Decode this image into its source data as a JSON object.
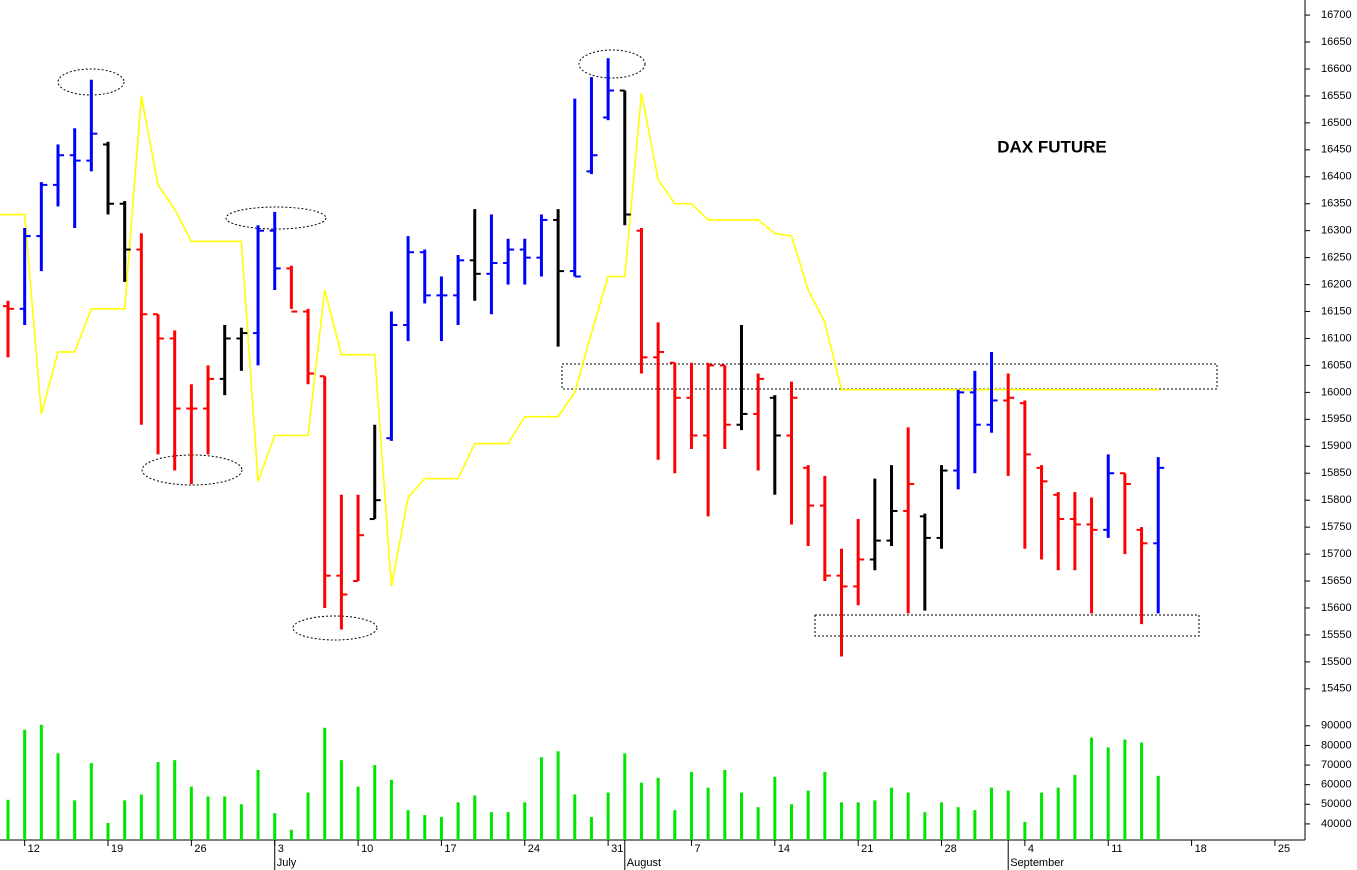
{
  "chart_data": {
    "type": "ohlc",
    "title": "DAX FUTURE",
    "categories": [
      null,
      "12",
      null,
      null,
      null,
      null,
      "19",
      null,
      null,
      null,
      null,
      "26",
      null,
      null,
      null,
      null,
      "3",
      null,
      null,
      null,
      null,
      "10",
      null,
      null,
      null,
      null,
      "17",
      null,
      null,
      null,
      null,
      "24",
      null,
      null,
      null,
      null,
      "31",
      null,
      null,
      null,
      null,
      "7",
      null,
      null,
      null,
      null,
      "14",
      null,
      null,
      null,
      null,
      "21",
      null,
      null,
      null,
      null,
      "28",
      null,
      null,
      null,
      null,
      "4",
      null,
      null,
      null,
      null,
      "11",
      null,
      null,
      null,
      null,
      "18",
      null,
      null,
      null,
      null,
      "25",
      null
    ],
    "months": [
      "July",
      "August",
      "September"
    ],
    "ohlc": {
      "open": [
        16160,
        16155,
        16290,
        16385,
        16440,
        16430,
        16460,
        16350,
        16265,
        16145,
        16100,
        15970,
        15970,
        16025,
        16100,
        16110,
        16300,
        16230,
        16150,
        16030,
        15660,
        15650,
        15765,
        15915,
        16125,
        16260,
        16180,
        16180,
        16245,
        16220,
        16240,
        16265,
        16250,
        16320,
        16225,
        16410,
        16510,
        16560,
        16300,
        16065,
        16055,
        15990,
        15920,
        16050,
        15940,
        15960,
        15990,
        15920,
        15860,
        15790,
        15660,
        15640,
        15690,
        15725,
        15780,
        15770,
        15730,
        15855,
        16000,
        15940,
        15985,
        15980,
        15860,
        15810,
        15765,
        15755,
        15745,
        15850,
        15745,
        15720,
        null,
        null,
        null,
        null,
        null,
        null,
        null,
        null
      ],
      "high": [
        16170,
        16305,
        16390,
        16460,
        16490,
        16580,
        16465,
        16355,
        16295,
        16145,
        16115,
        16015,
        16050,
        16125,
        16120,
        16310,
        16335,
        16235,
        16155,
        16030,
        15810,
        15810,
        15940,
        16150,
        16290,
        16265,
        16215,
        16255,
        16340,
        16330,
        16285,
        16285,
        16330,
        16340,
        16545,
        16585,
        16620,
        16560,
        16305,
        16130,
        16055,
        16055,
        16055,
        16050,
        16125,
        16035,
        15995,
        16020,
        15865,
        15845,
        15710,
        15765,
        15840,
        15865,
        15935,
        15775,
        15865,
        16005,
        16040,
        16075,
        16035,
        15985,
        15865,
        15815,
        15815,
        15805,
        15885,
        15850,
        15750,
        15880,
        null,
        null,
        null,
        null,
        null,
        null,
        null,
        null
      ],
      "low": [
        16065,
        16125,
        16225,
        16345,
        16305,
        16410,
        16330,
        16205,
        15940,
        15885,
        15855,
        15830,
        15885,
        15995,
        16040,
        16050,
        16190,
        16155,
        16015,
        15600,
        15560,
        15650,
        15765,
        15910,
        16095,
        16165,
        16095,
        16125,
        16170,
        16145,
        16200,
        16200,
        16215,
        16085,
        16215,
        16405,
        16505,
        16310,
        16035,
        15875,
        15850,
        15895,
        15770,
        15895,
        15930,
        15855,
        15810,
        15755,
        15715,
        15650,
        15510,
        15605,
        15670,
        15715,
        15590,
        15595,
        15710,
        15820,
        15850,
        15925,
        15845,
        15710,
        15690,
        15670,
        15670,
        15590,
        15730,
        15700,
        15570,
        15590,
        null,
        null,
        null,
        null,
        null,
        null,
        null,
        null
      ],
      "close": [
        16155,
        16290,
        16385,
        16440,
        16430,
        16480,
        16350,
        16265,
        16145,
        16100,
        15970,
        15970,
        16025,
        16100,
        16110,
        16300,
        16230,
        16150,
        16035,
        15660,
        15625,
        15735,
        15800,
        16125,
        16260,
        16180,
        16180,
        16245,
        16220,
        16240,
        16265,
        16250,
        16320,
        16225,
        16215,
        16440,
        16560,
        16330,
        16065,
        16075,
        15990,
        15920,
        16050,
        15940,
        15960,
        16025,
        15920,
        15990,
        15790,
        15660,
        15640,
        15690,
        15725,
        15780,
        15830,
        15730,
        15855,
        16000,
        15940,
        15985,
        15990,
        15885,
        15835,
        15765,
        15755,
        15745,
        15850,
        15830,
        15720,
        15860,
        null,
        null,
        null,
        null,
        null,
        null,
        null,
        null
      ],
      "colors": [
        "#ff0000",
        "#0000ff",
        "#0000ff",
        "#0000ff",
        "#0000ff",
        "#0000ff",
        "#000000",
        "#000000",
        "#ff0000",
        "#ff0000",
        "#ff0000",
        "#ff0000",
        "#ff0000",
        "#000000",
        "#000000",
        "#0000ff",
        "#0000ff",
        "#ff0000",
        "#ff0000",
        "#ff0000",
        "#ff0000",
        "#ff0000",
        "#000000",
        "#0000ff",
        "#0000ff",
        "#0000ff",
        "#0000ff",
        "#0000ff",
        "#000000",
        "#0000ff",
        "#0000ff",
        "#0000ff",
        "#0000ff",
        "#000000",
        "#0000ff",
        "#0000ff",
        "#0000ff",
        "#000000",
        "#ff0000",
        "#ff0000",
        "#ff0000",
        "#ff0000",
        "#ff0000",
        "#ff0000",
        "#000000",
        "#ff0000",
        "#000000",
        "#ff0000",
        "#ff0000",
        "#ff0000",
        "#ff0000",
        "#ff0000",
        "#000000",
        "#000000",
        "#ff0000",
        "#000000",
        "#000000",
        "#0000ff",
        "#0000ff",
        "#0000ff",
        "#ff0000",
        "#ff0000",
        "#ff0000",
        "#ff0000",
        "#ff0000",
        "#ff0000",
        "#0000ff",
        "#ff0000",
        "#ff0000",
        "#0000ff",
        null,
        null,
        null,
        null,
        null,
        null,
        null,
        null
      ]
    },
    "line": {
      "color": "#ffff00",
      "values": [
        16330,
        16330,
        15960,
        16075,
        16075,
        16155,
        16155,
        16155,
        16550,
        16385,
        16340,
        16280,
        16280,
        16280,
        16280,
        15835,
        15920,
        15920,
        15920,
        16190,
        16070,
        16070,
        16070,
        15640,
        15805,
        15840,
        15840,
        15840,
        15905,
        15905,
        15905,
        15955,
        15955,
        15955,
        16000,
        16110,
        16215,
        16215,
        16555,
        16395,
        16350,
        16350,
        16320,
        16320,
        16320,
        16320,
        16295,
        16290,
        16190,
        16130,
        16005,
        16005,
        16005,
        16005,
        16005,
        16005,
        16005,
        16005,
        16005,
        16005,
        16005,
        16005,
        16005,
        16005,
        16005,
        16005,
        16005,
        16005,
        16005,
        16005,
        null,
        null,
        null,
        null,
        null,
        null,
        null,
        null
      ]
    },
    "ylim": [
      15420,
      16728
    ],
    "yticks": [
      15450,
      15500,
      15550,
      15600,
      15650,
      15700,
      15750,
      15800,
      15850,
      15900,
      15950,
      16000,
      16050,
      16100,
      16150,
      16200,
      16250,
      16300,
      16350,
      16400,
      16450,
      16500,
      16550,
      16600,
      16650,
      16700
    ],
    "volume": {
      "color": "#00e600",
      "ylim": [
        31800,
        95000
      ],
      "yticks": [
        40000,
        50000,
        60000,
        70000,
        80000,
        90000
      ],
      "values": [
        52300,
        88000,
        90500,
        76000,
        52000,
        71000,
        40500,
        52000,
        55000,
        71500,
        72500,
        59000,
        54000,
        54000,
        50000,
        67500,
        45500,
        37000,
        56000,
        89000,
        72500,
        59000,
        70000,
        62500,
        47000,
        44500,
        43500,
        51000,
        54500,
        46000,
        46000,
        51000,
        74000,
        77000,
        55000,
        43500,
        56000,
        76000,
        61000,
        63500,
        47000,
        66500,
        58500,
        67500,
        56000,
        48500,
        64000,
        50000,
        57000,
        66500,
        51000,
        51000,
        52000,
        58500,
        56000,
        46000,
        51000,
        48500,
        47000,
        58500,
        57000,
        41000,
        56000,
        58500,
        65000,
        84000,
        79000,
        83000,
        81500,
        64500,
        null,
        null,
        null,
        null,
        null,
        null,
        null,
        null
      ]
    }
  }
}
